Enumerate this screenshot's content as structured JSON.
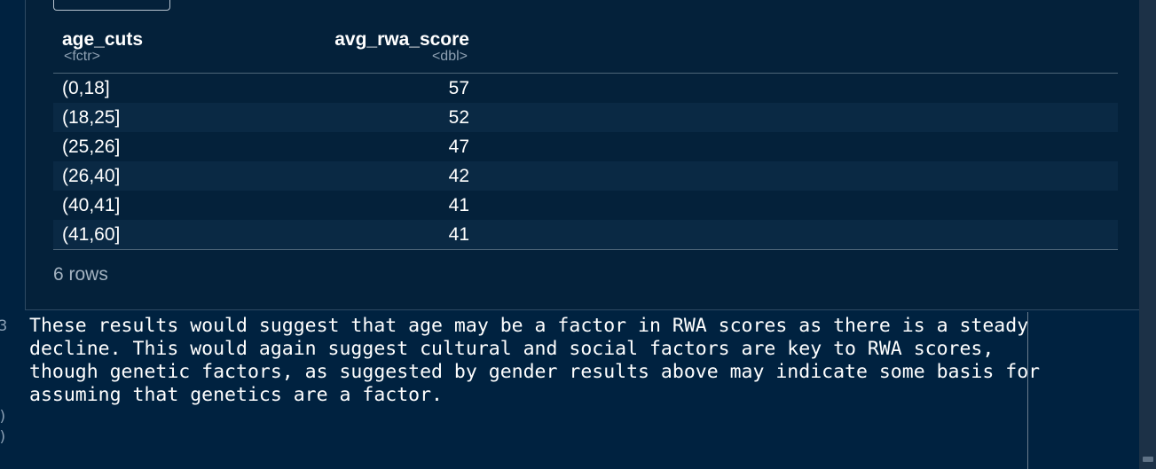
{
  "gutter": {
    "numbers": [
      "3",
      ")",
      ")"
    ]
  },
  "table": {
    "columns": [
      {
        "name": "age_cuts",
        "type": "<fctr>"
      },
      {
        "name": "avg_rwa_score",
        "type": "<dbl>"
      }
    ],
    "rows": [
      {
        "age_cuts": "(0,18]",
        "avg_rwa_score": "57"
      },
      {
        "age_cuts": "(18,25]",
        "avg_rwa_score": "52"
      },
      {
        "age_cuts": "(25,26]",
        "avg_rwa_score": "47"
      },
      {
        "age_cuts": "(26,40]",
        "avg_rwa_score": "42"
      },
      {
        "age_cuts": "(40,41]",
        "avg_rwa_score": "41"
      },
      {
        "age_cuts": "(41,60]",
        "avg_rwa_score": "41"
      }
    ],
    "row_count": "6 rows"
  },
  "editor": {
    "text": "These results would suggest that age may be a factor in RWA scores as there is a steady\ndecline. This would again suggest cultural and social factors are key to RWA scores,\nthough genetic factors, as suggested by gender results above may indicate some basis for\nassuming that genetics are a factor."
  },
  "colors": {
    "background": "#002240",
    "panel": "#04213a",
    "row_alt": "#0a2944"
  }
}
